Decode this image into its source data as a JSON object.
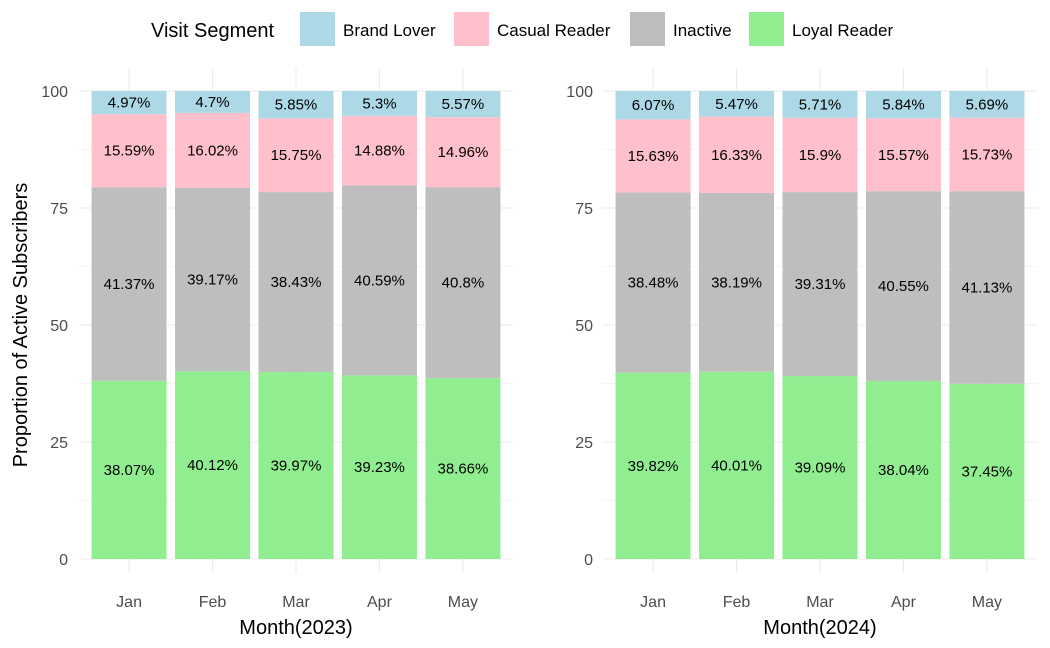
{
  "legend": {
    "title": "Visit Segment",
    "items": [
      {
        "name": "Brand Lover",
        "color": "#ADD8E6"
      },
      {
        "name": "Casual Reader",
        "color": "#FFC0CB"
      },
      {
        "name": "Inactive",
        "color": "#BEBEBE"
      },
      {
        "name": "Loyal Reader",
        "color": "#90EE90"
      }
    ]
  },
  "ylabel": "Proportion of Active Subscribers",
  "chart_data": [
    {
      "type": "bar",
      "stacked": true,
      "xlabel": "Month(2023)",
      "ylabel": "Proportion of Active Subscribers",
      "ylim": [
        0,
        100
      ],
      "yticks": [
        0,
        25,
        50,
        75,
        100
      ],
      "grid": true,
      "legend_position": "top",
      "categories": [
        "Jan",
        "Feb",
        "Mar",
        "Apr",
        "May"
      ],
      "series": [
        {
          "name": "Loyal Reader",
          "color": "#90EE90",
          "values": [
            38.07,
            40.12,
            39.97,
            39.23,
            38.66
          ],
          "labels": [
            "38.07%",
            "40.12%",
            "39.97%",
            "39.23%",
            "38.66%"
          ]
        },
        {
          "name": "Inactive",
          "color": "#BEBEBE",
          "values": [
            41.37,
            39.17,
            38.43,
            40.59,
            40.8
          ],
          "labels": [
            "41.37%",
            "39.17%",
            "38.43%",
            "40.59%",
            "40.8%"
          ]
        },
        {
          "name": "Casual Reader",
          "color": "#FFC0CB",
          "values": [
            15.59,
            16.02,
            15.75,
            14.88,
            14.96
          ],
          "labels": [
            "15.59%",
            "16.02%",
            "15.75%",
            "14.88%",
            "14.96%"
          ]
        },
        {
          "name": "Brand Lover",
          "color": "#ADD8E6",
          "values": [
            4.97,
            4.7,
            5.85,
            5.3,
            5.57
          ],
          "labels": [
            "4.97%",
            "4.7%",
            "5.85%",
            "5.3%",
            "5.57%"
          ]
        }
      ]
    },
    {
      "type": "bar",
      "stacked": true,
      "xlabel": "Month(2024)",
      "ylabel": "",
      "ylim": [
        0,
        100
      ],
      "yticks": [
        0,
        25,
        50,
        75,
        100
      ],
      "grid": true,
      "legend_position": "top",
      "categories": [
        "Jan",
        "Feb",
        "Mar",
        "Apr",
        "May"
      ],
      "series": [
        {
          "name": "Loyal Reader",
          "color": "#90EE90",
          "values": [
            39.82,
            40.01,
            39.09,
            38.04,
            37.45
          ],
          "labels": [
            "39.82%",
            "40.01%",
            "39.09%",
            "38.04%",
            "37.45%"
          ]
        },
        {
          "name": "Inactive",
          "color": "#BEBEBE",
          "values": [
            38.48,
            38.19,
            39.31,
            40.55,
            41.13
          ],
          "labels": [
            "38.48%",
            "38.19%",
            "39.31%",
            "40.55%",
            "41.13%"
          ]
        },
        {
          "name": "Casual Reader",
          "color": "#FFC0CB",
          "values": [
            15.63,
            16.33,
            15.9,
            15.57,
            15.73
          ],
          "labels": [
            "15.63%",
            "16.33%",
            "15.9%",
            "15.57%",
            "15.73%"
          ]
        },
        {
          "name": "Brand Lover",
          "color": "#ADD8E6",
          "values": [
            6.07,
            5.47,
            5.71,
            5.84,
            5.69
          ],
          "labels": [
            "6.07%",
            "5.47%",
            "5.71%",
            "5.84%",
            "5.69%"
          ]
        }
      ]
    }
  ]
}
